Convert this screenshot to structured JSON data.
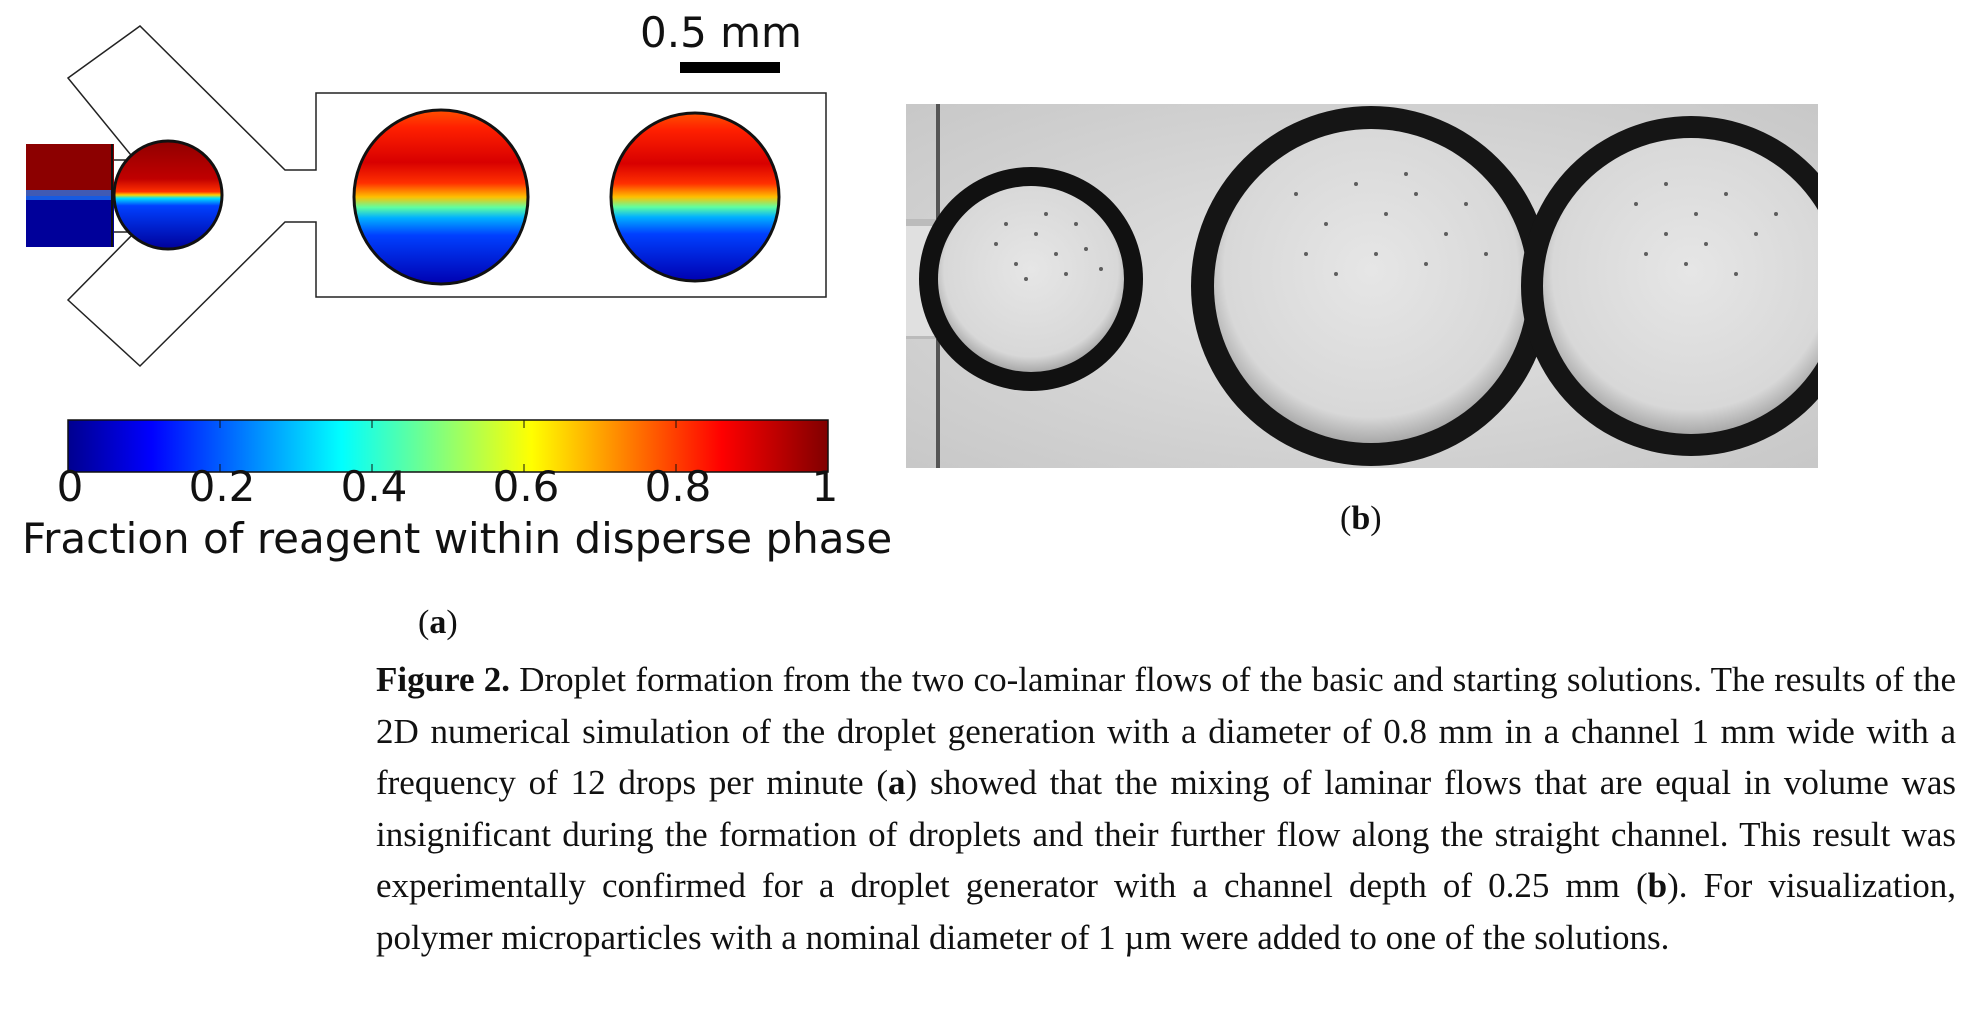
{
  "panel_a": {
    "scale_bar_label": "0.5 mm",
    "colorbar": {
      "ticks": [
        "0",
        "0.2",
        "0.4",
        "0.6",
        "0.8",
        "1"
      ],
      "label": "Fraction of reagent within disperse phase"
    },
    "label_open": "(",
    "label_letter": "a",
    "label_close": ")"
  },
  "panel_b": {
    "label_open": "(",
    "label_letter": "b",
    "label_close": ")"
  },
  "caption": {
    "figure_label": "Figure 2.",
    "seg1": " Droplet formation from the two co-laminar flows of the basic and starting solutions. The results of the 2D numerical simulation of the droplet generation with a diameter of 0.8 mm in a channel 1 mm wide with a frequency of 12 drops per minute (",
    "ref_a": "a",
    "seg2": ") showed that the mixing of laminar flows that are equal in volume was insignificant during the formation of droplets and their further flow along the straight channel. This result was experimentally confirmed for a droplet generator with a channel depth of 0.25 mm (",
    "ref_b": "b",
    "seg3": ").  For visualization, polymer microparticles with a nominal diameter of 1 µm were added to one of the solutions."
  },
  "colors": {
    "jet_0": "#00008f",
    "jet_20": "#0040ff",
    "jet_35": "#00ffff",
    "jet_60": "#ffff00",
    "jet_80": "#ff4000",
    "jet_100": "#800000"
  }
}
